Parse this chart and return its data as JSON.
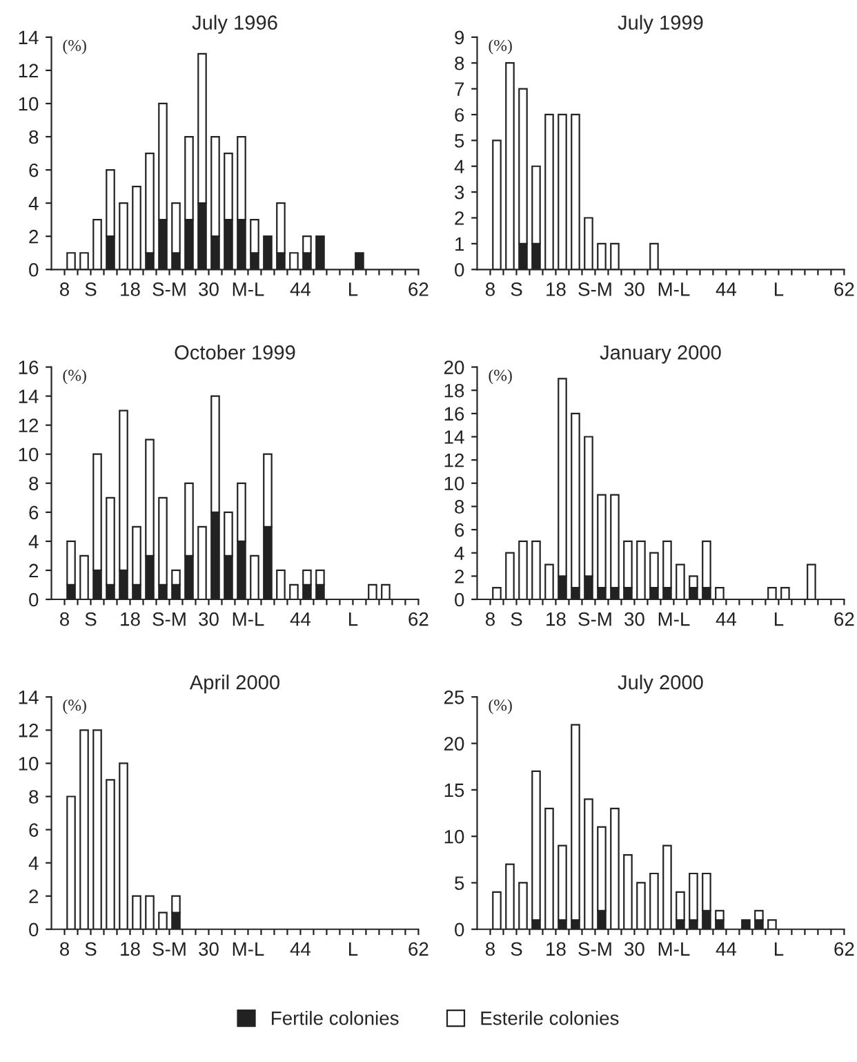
{
  "chart_data": [
    {
      "type": "bar",
      "title": "July 1996",
      "ylabel": "(%)",
      "stacked": true,
      "x": [
        9,
        11,
        13,
        15,
        17,
        19,
        21,
        23,
        25,
        27,
        29,
        31,
        33,
        35,
        37,
        39,
        41,
        43,
        45,
        47,
        53
      ],
      "xlim": [
        6,
        62
      ],
      "ylim": [
        0,
        14
      ],
      "yticks": [
        0,
        2,
        4,
        6,
        8,
        10,
        12,
        14
      ],
      "xticks": [
        {
          "value": 8,
          "label": "8"
        },
        {
          "value": 10,
          "label": null
        },
        {
          "value": 12,
          "label": "S"
        },
        {
          "value": 14,
          "label": null
        },
        {
          "value": 16,
          "label": null
        },
        {
          "value": 18,
          "label": "18"
        },
        {
          "value": 20,
          "label": null
        },
        {
          "value": 22,
          "label": null
        },
        {
          "value": 24,
          "label": "S-M"
        },
        {
          "value": 26,
          "label": null
        },
        {
          "value": 28,
          "label": null
        },
        {
          "value": 30,
          "label": "30"
        },
        {
          "value": 32,
          "label": null
        },
        {
          "value": 34,
          "label": null
        },
        {
          "value": 36,
          "label": "M-L"
        },
        {
          "value": 38,
          "label": null
        },
        {
          "value": 40,
          "label": null
        },
        {
          "value": 42,
          "label": null
        },
        {
          "value": 44,
          "label": "44"
        },
        {
          "value": 46,
          "label": null
        },
        {
          "value": 48,
          "label": null
        },
        {
          "value": 50,
          "label": null
        },
        {
          "value": 52,
          "label": "L"
        },
        {
          "value": 54,
          "label": null
        },
        {
          "value": 56,
          "label": null
        },
        {
          "value": 58,
          "label": null
        },
        {
          "value": 60,
          "label": null
        },
        {
          "value": 62,
          "label": "62"
        }
      ],
      "series": [
        {
          "color": "#222222",
          "values": [
            0,
            0,
            0,
            2,
            0,
            0,
            1,
            3,
            1,
            3,
            4,
            2,
            3,
            3,
            1,
            2,
            1,
            0,
            1,
            2,
            1
          ]
        },
        {
          "color": "#ffffff",
          "values": [
            1,
            1,
            3,
            4,
            4,
            5,
            6,
            7,
            3,
            5,
            9,
            6,
            4,
            5,
            2,
            null,
            3,
            1,
            1,
            null,
            null
          ]
        }
      ]
    },
    {
      "type": "bar",
      "title": "July 1999",
      "ylabel": "(%)",
      "stacked": true,
      "x": [
        9,
        11,
        13,
        15,
        17,
        19,
        21,
        23,
        25,
        27,
        33
      ],
      "xlim": [
        6,
        62
      ],
      "ylim": [
        0,
        9
      ],
      "yticks": [
        0,
        1,
        2,
        3,
        4,
        5,
        6,
        7,
        8,
        9
      ],
      "xticks": [
        {
          "value": 8,
          "label": "8"
        },
        {
          "value": 10,
          "label": null
        },
        {
          "value": 12,
          "label": "S"
        },
        {
          "value": 14,
          "label": null
        },
        {
          "value": 16,
          "label": null
        },
        {
          "value": 18,
          "label": "18"
        },
        {
          "value": 20,
          "label": null
        },
        {
          "value": 22,
          "label": null
        },
        {
          "value": 24,
          "label": "S-M"
        },
        {
          "value": 26,
          "label": null
        },
        {
          "value": 28,
          "label": null
        },
        {
          "value": 30,
          "label": "30"
        },
        {
          "value": 32,
          "label": null
        },
        {
          "value": 34,
          "label": null
        },
        {
          "value": 36,
          "label": "M-L"
        },
        {
          "value": 38,
          "label": null
        },
        {
          "value": 40,
          "label": null
        },
        {
          "value": 42,
          "label": null
        },
        {
          "value": 44,
          "label": "44"
        },
        {
          "value": 46,
          "label": null
        },
        {
          "value": 48,
          "label": null
        },
        {
          "value": 50,
          "label": null
        },
        {
          "value": 52,
          "label": "L"
        },
        {
          "value": 54,
          "label": null
        },
        {
          "value": 56,
          "label": null
        },
        {
          "value": 58,
          "label": null
        },
        {
          "value": 60,
          "label": null
        },
        {
          "value": 62,
          "label": "62"
        }
      ],
      "series": [
        {
          "color": "#222222",
          "values": [
            0,
            0,
            1,
            1,
            0,
            0,
            0,
            0,
            0,
            0,
            0
          ]
        },
        {
          "color": "#ffffff",
          "values": [
            5,
            8,
            6,
            3,
            6,
            6,
            6,
            2,
            1,
            1,
            1
          ]
        }
      ]
    },
    {
      "type": "bar",
      "title": "October 1999",
      "ylabel": "(%)",
      "stacked": true,
      "x": [
        9,
        11,
        13,
        15,
        17,
        19,
        21,
        23,
        25,
        27,
        29,
        31,
        33,
        35,
        37,
        39,
        41,
        43,
        45,
        47,
        55,
        57
      ],
      "xlim": [
        6,
        62
      ],
      "ylim": [
        0,
        16
      ],
      "yticks": [
        0,
        2,
        4,
        6,
        8,
        10,
        12,
        14,
        16
      ],
      "xticks": [
        {
          "value": 8,
          "label": "8"
        },
        {
          "value": 10,
          "label": null
        },
        {
          "value": 12,
          "label": "S"
        },
        {
          "value": 14,
          "label": null
        },
        {
          "value": 16,
          "label": null
        },
        {
          "value": 18,
          "label": "18"
        },
        {
          "value": 20,
          "label": null
        },
        {
          "value": 22,
          "label": null
        },
        {
          "value": 24,
          "label": "S-M"
        },
        {
          "value": 26,
          "label": null
        },
        {
          "value": 28,
          "label": null
        },
        {
          "value": 30,
          "label": "30"
        },
        {
          "value": 32,
          "label": null
        },
        {
          "value": 34,
          "label": null
        },
        {
          "value": 36,
          "label": "M-L"
        },
        {
          "value": 38,
          "label": null
        },
        {
          "value": 40,
          "label": null
        },
        {
          "value": 42,
          "label": null
        },
        {
          "value": 44,
          "label": "44"
        },
        {
          "value": 46,
          "label": null
        },
        {
          "value": 48,
          "label": null
        },
        {
          "value": 50,
          "label": null
        },
        {
          "value": 52,
          "label": "L"
        },
        {
          "value": 54,
          "label": null
        },
        {
          "value": 56,
          "label": null
        },
        {
          "value": 58,
          "label": null
        },
        {
          "value": 60,
          "label": null
        },
        {
          "value": 62,
          "label": "62"
        }
      ],
      "series": [
        {
          "color": "#222222",
          "values": [
            1,
            0,
            2,
            1,
            2,
            1,
            3,
            1,
            1,
            3,
            0,
            6,
            3,
            4,
            0,
            5,
            0,
            0,
            1,
            1,
            0,
            0
          ]
        },
        {
          "color": "#ffffff",
          "values": [
            3,
            3,
            8,
            6,
            11,
            4,
            8,
            6,
            1,
            5,
            5,
            8,
            3,
            4,
            3,
            5,
            2,
            1,
            1,
            1,
            1,
            1
          ]
        }
      ]
    },
    {
      "type": "bar",
      "title": "January 2000",
      "ylabel": "(%)",
      "stacked": true,
      "x": [
        9,
        11,
        13,
        15,
        17,
        19,
        21,
        23,
        25,
        27,
        29,
        31,
        33,
        35,
        37,
        39,
        41,
        43,
        51,
        53,
        57
      ],
      "xlim": [
        6,
        62
      ],
      "ylim": [
        0,
        20
      ],
      "yticks": [
        0,
        2,
        4,
        6,
        8,
        10,
        12,
        14,
        16,
        18,
        20
      ],
      "xticks": [
        {
          "value": 8,
          "label": "8"
        },
        {
          "value": 10,
          "label": null
        },
        {
          "value": 12,
          "label": "S"
        },
        {
          "value": 14,
          "label": null
        },
        {
          "value": 16,
          "label": null
        },
        {
          "value": 18,
          "label": "18"
        },
        {
          "value": 20,
          "label": null
        },
        {
          "value": 22,
          "label": null
        },
        {
          "value": 24,
          "label": "S-M"
        },
        {
          "value": 26,
          "label": null
        },
        {
          "value": 28,
          "label": null
        },
        {
          "value": 30,
          "label": "30"
        },
        {
          "value": 32,
          "label": null
        },
        {
          "value": 34,
          "label": null
        },
        {
          "value": 36,
          "label": "M-L"
        },
        {
          "value": 38,
          "label": null
        },
        {
          "value": 40,
          "label": null
        },
        {
          "value": 42,
          "label": null
        },
        {
          "value": 44,
          "label": "44"
        },
        {
          "value": 46,
          "label": null
        },
        {
          "value": 48,
          "label": null
        },
        {
          "value": 50,
          "label": null
        },
        {
          "value": 52,
          "label": "L"
        },
        {
          "value": 54,
          "label": null
        },
        {
          "value": 56,
          "label": null
        },
        {
          "value": 58,
          "label": null
        },
        {
          "value": 60,
          "label": null
        },
        {
          "value": 62,
          "label": "62"
        }
      ],
      "series": [
        {
          "color": "#222222",
          "values": [
            0,
            0,
            0,
            0,
            0,
            2,
            1,
            2,
            1,
            1,
            1,
            0,
            1,
            1,
            0,
            1,
            1,
            0,
            0,
            0,
            0
          ]
        },
        {
          "color": "#ffffff",
          "values": [
            1,
            4,
            5,
            5,
            3,
            17,
            15,
            12,
            8,
            8,
            4,
            5,
            3,
            4,
            3,
            1,
            4,
            1,
            1,
            1,
            3
          ]
        }
      ]
    },
    {
      "type": "bar",
      "title": "April 2000",
      "ylabel": "(%)",
      "stacked": true,
      "x": [
        9,
        11,
        13,
        15,
        17,
        19,
        21,
        23,
        25
      ],
      "xlim": [
        6,
        62
      ],
      "ylim": [
        0,
        14
      ],
      "yticks": [
        0,
        2,
        4,
        6,
        8,
        10,
        12,
        14
      ],
      "xticks": [
        {
          "value": 8,
          "label": "8"
        },
        {
          "value": 10,
          "label": null
        },
        {
          "value": 12,
          "label": "S"
        },
        {
          "value": 14,
          "label": null
        },
        {
          "value": 16,
          "label": null
        },
        {
          "value": 18,
          "label": "18"
        },
        {
          "value": 20,
          "label": null
        },
        {
          "value": 22,
          "label": null
        },
        {
          "value": 24,
          "label": "S-M"
        },
        {
          "value": 26,
          "label": null
        },
        {
          "value": 28,
          "label": null
        },
        {
          "value": 30,
          "label": "30"
        },
        {
          "value": 32,
          "label": null
        },
        {
          "value": 34,
          "label": null
        },
        {
          "value": 36,
          "label": "M-L"
        },
        {
          "value": 38,
          "label": null
        },
        {
          "value": 40,
          "label": null
        },
        {
          "value": 42,
          "label": null
        },
        {
          "value": 44,
          "label": "44"
        },
        {
          "value": 46,
          "label": null
        },
        {
          "value": 48,
          "label": null
        },
        {
          "value": 50,
          "label": null
        },
        {
          "value": 52,
          "label": "L"
        },
        {
          "value": 54,
          "label": null
        },
        {
          "value": 56,
          "label": null
        },
        {
          "value": 58,
          "label": null
        },
        {
          "value": 60,
          "label": null
        },
        {
          "value": 62,
          "label": "62"
        }
      ],
      "series": [
        {
          "color": "#222222",
          "values": [
            0,
            0,
            0,
            0,
            0,
            0,
            0,
            0,
            1
          ]
        },
        {
          "color": "#ffffff",
          "values": [
            8,
            12,
            12,
            9,
            10,
            2,
            2,
            1,
            1
          ]
        }
      ]
    },
    {
      "type": "bar",
      "title": "July 2000",
      "ylabel": "(%)",
      "stacked": true,
      "legend": "bottom",
      "x": [
        9,
        11,
        13,
        15,
        17,
        19,
        21,
        23,
        25,
        27,
        29,
        31,
        33,
        35,
        37,
        39,
        41,
        43,
        47,
        49,
        51
      ],
      "xlim": [
        6,
        62
      ],
      "ylim": [
        0,
        25
      ],
      "yticks": [
        0,
        5,
        10,
        15,
        20,
        25
      ],
      "xticks": [
        {
          "value": 8,
          "label": "8"
        },
        {
          "value": 10,
          "label": null
        },
        {
          "value": 12,
          "label": "S"
        },
        {
          "value": 14,
          "label": null
        },
        {
          "value": 16,
          "label": null
        },
        {
          "value": 18,
          "label": "18"
        },
        {
          "value": 20,
          "label": null
        },
        {
          "value": 22,
          "label": null
        },
        {
          "value": 24,
          "label": "S-M"
        },
        {
          "value": 26,
          "label": null
        },
        {
          "value": 28,
          "label": null
        },
        {
          "value": 30,
          "label": "30"
        },
        {
          "value": 32,
          "label": null
        },
        {
          "value": 34,
          "label": null
        },
        {
          "value": 36,
          "label": "M-L"
        },
        {
          "value": 38,
          "label": null
        },
        {
          "value": 40,
          "label": null
        },
        {
          "value": 42,
          "label": null
        },
        {
          "value": 44,
          "label": "44"
        },
        {
          "value": 46,
          "label": null
        },
        {
          "value": 48,
          "label": null
        },
        {
          "value": 50,
          "label": null
        },
        {
          "value": 52,
          "label": "L"
        },
        {
          "value": 54,
          "label": null
        },
        {
          "value": 56,
          "label": null
        },
        {
          "value": 58,
          "label": null
        },
        {
          "value": 60,
          "label": null
        },
        {
          "value": 62,
          "label": "62"
        }
      ],
      "series": [
        {
          "name": "Fertile colonies",
          "color": "#222222",
          "values": [
            0,
            0,
            0,
            1,
            0,
            1,
            1,
            0,
            2,
            0,
            0,
            0,
            0,
            0,
            1,
            1,
            2,
            1,
            1,
            1,
            0
          ]
        },
        {
          "name": "Esterile colonies",
          "color": "#ffffff",
          "values": [
            4,
            7,
            5,
            16,
            13,
            8,
            21,
            14,
            9,
            13,
            8,
            5,
            6,
            9,
            3,
            5,
            4,
            1,
            null,
            1,
            1
          ]
        }
      ]
    }
  ]
}
